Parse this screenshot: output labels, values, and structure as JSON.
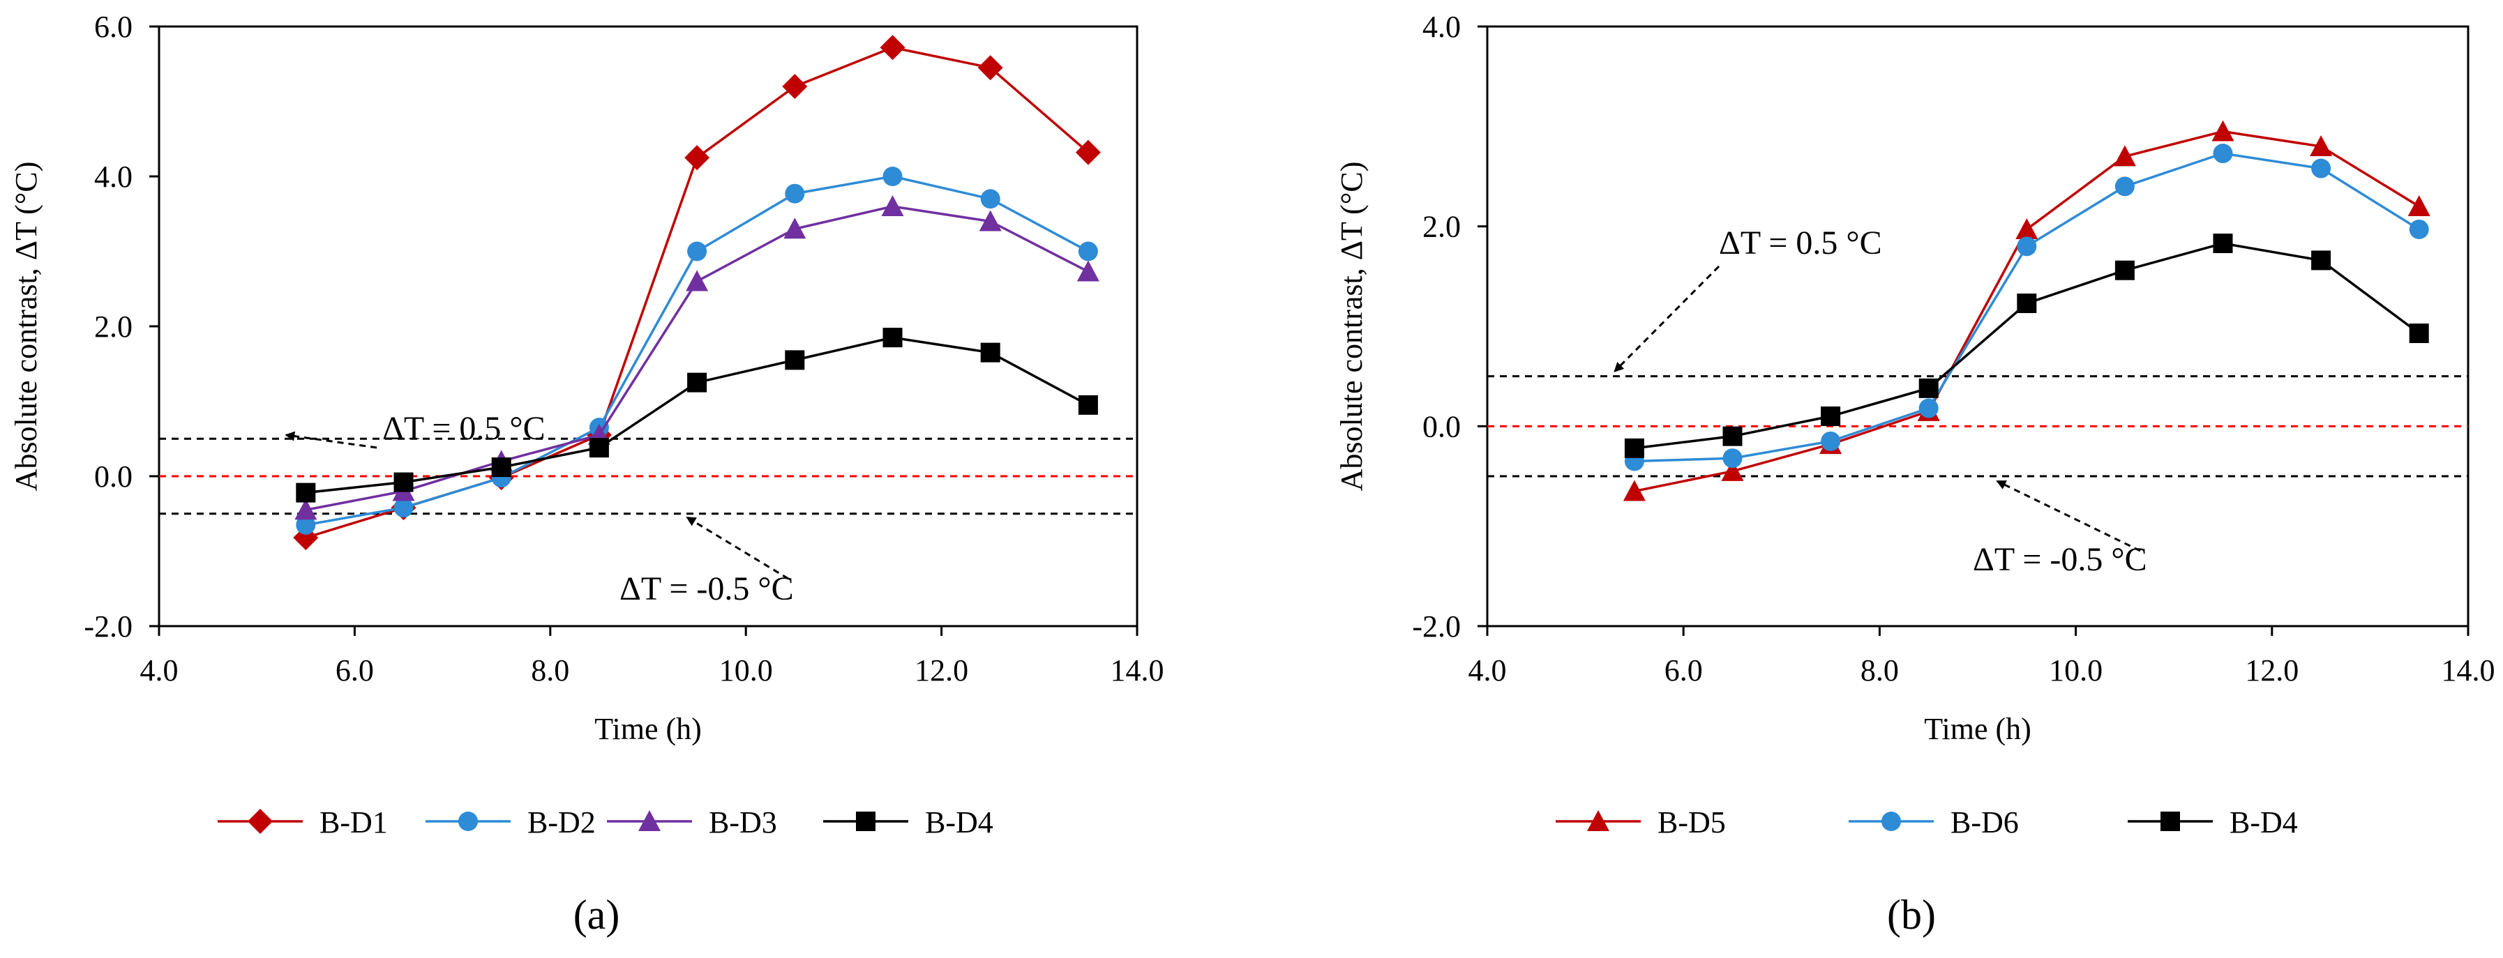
{
  "chart_data": [
    {
      "type": "line",
      "caption": "(a)",
      "xlabel": "Time  (h)",
      "ylabel": "Absolute  contrast,  ΔT (°C)",
      "xlim": [
        4.0,
        14.0
      ],
      "ylim": [
        -2.0,
        6.0
      ],
      "xticks": [
        "4.0",
        "6.0",
        "8.0",
        "10.0",
        "12.0",
        "14.0"
      ],
      "yticks": [
        "-2.0",
        "0.0",
        "2.0",
        "4.0",
        "6.0"
      ],
      "x": [
        5.5,
        6.5,
        7.5,
        8.5,
        9.5,
        10.5,
        11.5,
        12.5,
        13.5
      ],
      "series": [
        {
          "name": "B-D1",
          "color": "#C00000",
          "marker": "diamond",
          "values": [
            -0.82,
            -0.42,
            -0.02,
            0.55,
            4.25,
            5.2,
            5.72,
            5.45,
            4.32
          ]
        },
        {
          "name": "B-D2",
          "color": "#2E8BD6",
          "marker": "circle",
          "values": [
            -0.65,
            -0.42,
            -0.02,
            0.65,
            3.0,
            3.77,
            4.0,
            3.7,
            3.0
          ]
        },
        {
          "name": "B-D3",
          "color": "#7030A0",
          "marker": "triangle",
          "values": [
            -0.45,
            -0.2,
            0.2,
            0.55,
            2.6,
            3.3,
            3.6,
            3.4,
            2.73
          ]
        },
        {
          "name": "B-D4",
          "color": "#000000",
          "marker": "square",
          "values": [
            -0.22,
            -0.08,
            0.12,
            0.38,
            1.25,
            1.55,
            1.85,
            1.65,
            0.95
          ]
        }
      ],
      "reference_lines": [
        {
          "y": 0.5,
          "color": "#000000"
        },
        {
          "y": 0.0,
          "color": "#FF0000"
        },
        {
          "y": -0.5,
          "color": "#000000"
        }
      ],
      "annotations": [
        {
          "text": "ΔT = 0.5 °C",
          "points_to": [
            5.3,
            0.55
          ]
        },
        {
          "text": "ΔT = -0.5 °C",
          "points_to": [
            9.4,
            -0.55
          ]
        }
      ]
    },
    {
      "type": "line",
      "caption": "(b)",
      "xlabel": "Time  (h)",
      "ylabel": "Absolute  contrast,  ΔT (°C)",
      "xlim": [
        4.0,
        14.0
      ],
      "ylim": [
        -2.0,
        4.0
      ],
      "xticks": [
        "4.0",
        "6.0",
        "8.0",
        "10.0",
        "12.0",
        "14.0"
      ],
      "yticks": [
        "-2.0",
        "0.0",
        "2.0",
        "4.0"
      ],
      "x": [
        5.5,
        6.5,
        7.5,
        8.5,
        9.5,
        10.5,
        11.5,
        12.5,
        13.5
      ],
      "series": [
        {
          "name": "B-D5",
          "color": "#C00000",
          "marker": "triangle",
          "values": [
            -0.65,
            -0.45,
            -0.18,
            0.15,
            1.97,
            2.7,
            2.95,
            2.8,
            2.2
          ]
        },
        {
          "name": "B-D6",
          "color": "#2E8BD6",
          "marker": "circle",
          "values": [
            -0.35,
            -0.32,
            -0.15,
            0.18,
            1.8,
            2.4,
            2.73,
            2.58,
            1.97
          ]
        },
        {
          "name": "B-D4",
          "color": "#000000",
          "marker": "square",
          "values": [
            -0.22,
            -0.1,
            0.1,
            0.38,
            1.23,
            1.56,
            1.83,
            1.66,
            0.93
          ]
        }
      ],
      "reference_lines": [
        {
          "y": 0.5,
          "color": "#000000"
        },
        {
          "y": 0.0,
          "color": "#FF0000"
        },
        {
          "y": -0.5,
          "color": "#000000"
        }
      ],
      "annotations": [
        {
          "text": "ΔT = 0.5 °C",
          "points_to": [
            5.3,
            0.55
          ]
        },
        {
          "text": "ΔT = -0.5 °C",
          "points_to": [
            9.2,
            -0.55
          ]
        }
      ]
    }
  ]
}
